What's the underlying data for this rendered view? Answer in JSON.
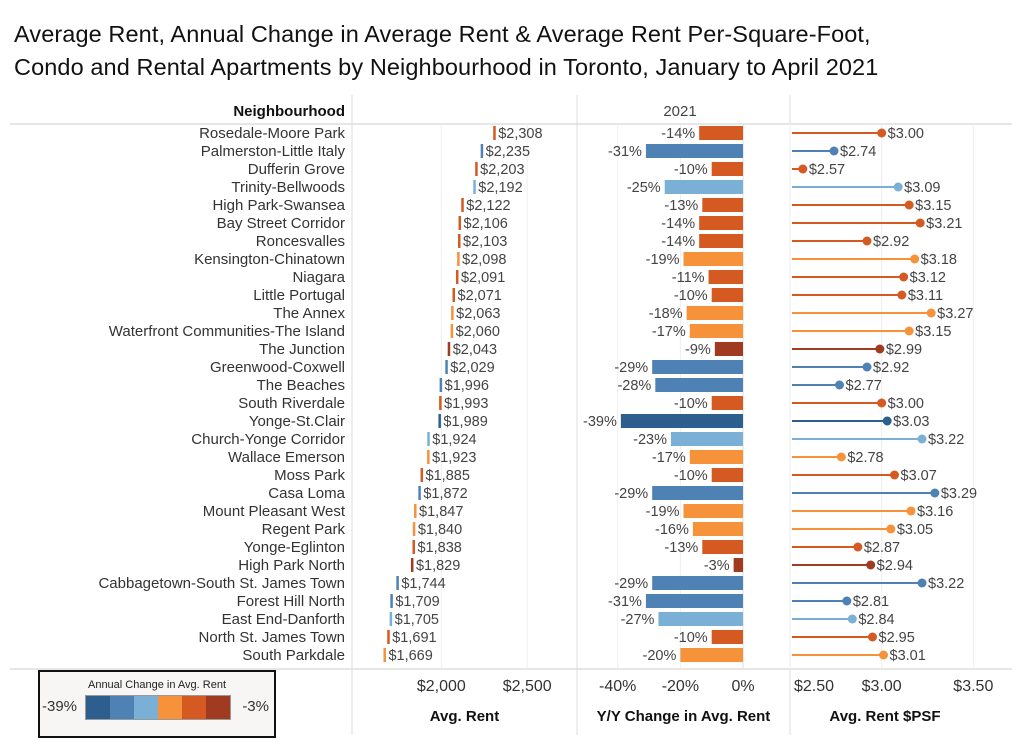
{
  "title_line1": "Average Rent, Annual Change in Average Rent & Average Rent Per-Square-Foot,",
  "title_line2": "Condo and Rental Apartments by Neighbourhood in Toronto, January to April 2021",
  "row_header": "Neighbourhood",
  "column_header": "2021",
  "legend": {
    "title": "Annual Change in Avg. Rent",
    "min_label": "-39%",
    "max_label": "-3%",
    "colors": [
      "#2c5f8d",
      "#4e81b4",
      "#7bb0d6",
      "#f5923a",
      "#d45a22",
      "#a03a20"
    ]
  },
  "chart_data": {
    "type": "bar",
    "categories": [
      "Rosedale-Moore Park",
      "Palmerston-Little Italy",
      "Dufferin Grove",
      "Trinity-Bellwoods",
      "High Park-Swansea",
      "Bay Street Corridor",
      "Roncesvalles",
      "Kensington-Chinatown",
      "Niagara",
      "Little Portugal",
      "The Annex",
      "Waterfront Communities-The Island",
      "The Junction",
      "Greenwood-Coxwell",
      "The Beaches",
      "South Riverdale",
      "Yonge-St.Clair",
      "Church-Yonge Corridor",
      "Wallace Emerson",
      "Moss Park",
      "Casa Loma",
      "Mount Pleasant West",
      "Regent Park",
      "Yonge-Eglinton",
      "High Park North",
      "Cabbagetown-South St. James Town",
      "Forest Hill North",
      "East End-Danforth",
      "North St. James Town",
      "South Parkdale"
    ],
    "panels": [
      {
        "name": "Avg. Rent",
        "type": "tick",
        "xlim": [
          1480,
          2790
        ],
        "ticks": [
          2000,
          2500
        ],
        "tick_labels": [
          "$2,000",
          "$2,500"
        ],
        "values": [
          2308,
          2235,
          2203,
          2192,
          2122,
          2106,
          2103,
          2098,
          2091,
          2071,
          2063,
          2060,
          2043,
          2029,
          1996,
          1993,
          1989,
          1924,
          1923,
          1885,
          1872,
          1847,
          1840,
          1838,
          1829,
          1744,
          1709,
          1705,
          1691,
          1669
        ],
        "labels": [
          "$2,308",
          "$2,235",
          "$2,203",
          "$2,192",
          "$2,122",
          "$2,106",
          "$2,103",
          "$2,098",
          "$2,091",
          "$2,071",
          "$2,063",
          "$2,060",
          "$2,043",
          "$2,029",
          "$1,996",
          "$1,993",
          "$1,989",
          "$1,924",
          "$1,923",
          "$1,885",
          "$1,872",
          "$1,847",
          "$1,840",
          "$1,838",
          "$1,829",
          "$1,744",
          "$1,709",
          "$1,705",
          "$1,691",
          "$1,669"
        ]
      },
      {
        "name": "Y/Y Change in Avg. Rent",
        "type": "bar",
        "xlim": [
          -53,
          15
        ],
        "ticks": [
          -40,
          -20,
          0
        ],
        "tick_labels": [
          "-40%",
          "-20%",
          "0%"
        ],
        "values": [
          -14,
          -31,
          -10,
          -25,
          -13,
          -14,
          -14,
          -19,
          -11,
          -10,
          -18,
          -17,
          -9,
          -29,
          -28,
          -10,
          -39,
          -23,
          -17,
          -10,
          -29,
          -19,
          -16,
          -13,
          -3,
          -29,
          -31,
          -27,
          -10,
          -20
        ],
        "labels": [
          "-14%",
          "-31%",
          "-10%",
          "-25%",
          "-13%",
          "-14%",
          "-14%",
          "-19%",
          "-11%",
          "-10%",
          "-18%",
          "-17%",
          "-9%",
          "-29%",
          "-28%",
          "-10%",
          "-39%",
          "-23%",
          "-17%",
          "-10%",
          "-29%",
          "-19%",
          "-16%",
          "-13%",
          "-3%",
          "-29%",
          "-31%",
          "-27%",
          "-10%",
          "-20%"
        ]
      },
      {
        "name": "Avg. Rent $PSF",
        "type": "lollipop",
        "xlim": [
          2.5,
          3.7
        ],
        "ticks": [
          2.5,
          3.0,
          3.5
        ],
        "tick_labels": [
          "$2.50",
          "$3.00",
          "$3.50"
        ],
        "values": [
          3.0,
          2.74,
          2.57,
          3.09,
          3.15,
          3.21,
          2.92,
          3.18,
          3.12,
          3.11,
          3.27,
          3.15,
          2.99,
          2.92,
          2.77,
          3.0,
          3.03,
          3.22,
          2.78,
          3.07,
          3.29,
          3.16,
          3.05,
          2.87,
          2.94,
          3.22,
          2.81,
          2.84,
          2.95,
          3.01
        ],
        "labels": [
          "$3.00",
          "$2.74",
          "$2.57",
          "$3.09",
          "$3.15",
          "$3.21",
          "$2.92",
          "$3.18",
          "$3.12",
          "$3.11",
          "$3.27",
          "$3.15",
          "$2.99",
          "$2.92",
          "$2.77",
          "$3.00",
          "$3.03",
          "$3.22",
          "$2.78",
          "$3.07",
          "$3.29",
          "$3.16",
          "$3.05",
          "$2.87",
          "$2.94",
          "$3.22",
          "$2.81",
          "$2.84",
          "$2.95",
          "$3.01"
        ]
      }
    ]
  }
}
